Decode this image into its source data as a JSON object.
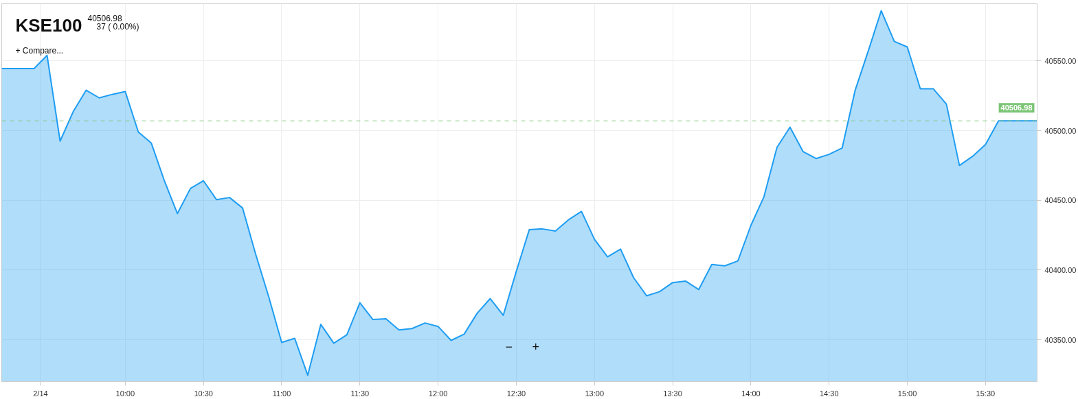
{
  "chart_data": {
    "type": "area",
    "title": "KSE100",
    "subtitle": "40506.98",
    "annotations": [
      "37 ( 0.00%)",
      "+ Compare...",
      "−",
      "+"
    ],
    "x": [
      9.21,
      9.4167,
      9.5,
      9.5833,
      9.6667,
      9.75,
      9.8333,
      9.9167,
      10,
      10.0833,
      10.1667,
      10.25,
      10.3333,
      10.4167,
      10.5,
      10.5833,
      10.6667,
      10.75,
      10.8333,
      10.9167,
      11,
      11.0833,
      11.1667,
      11.25,
      11.3333,
      11.4167,
      11.5,
      11.5833,
      11.6667,
      11.75,
      11.8333,
      11.9167,
      12,
      12.0833,
      12.1667,
      12.25,
      12.3333,
      12.4167,
      12.5,
      12.5833,
      12.6667,
      12.75,
      12.8333,
      12.9167,
      13,
      13.0833,
      13.1667,
      13.25,
      13.3333,
      13.4167,
      13.5,
      13.5833,
      13.6667,
      13.75,
      13.8333,
      13.9167,
      14,
      14.0833,
      14.1667,
      14.25,
      14.3333,
      14.4167,
      14.5,
      14.5833,
      14.6667,
      14.75,
      14.8333,
      14.9167,
      15,
      15.0833,
      15.1667,
      15.25,
      15.3333,
      15.4167,
      15.5,
      15.5833,
      15.83
    ],
    "series": [
      {
        "color": "#1e9df2",
        "values": [
          40544.5,
          40544.5,
          40554,
          40492.5,
          40513.5,
          40529,
          40523.5,
          40526,
          40528,
          40499,
          40491,
          40464,
          40440.5,
          40458.5,
          40464,
          40450.5,
          40452,
          40444.5,
          40411.5,
          40381,
          40348,
          40351,
          40324.5,
          40361,
          40347.5,
          40353.5,
          40376.5,
          40364.5,
          40365,
          40357,
          40358,
          40362,
          40359.5,
          40349.5,
          40354,
          40369,
          40379.5,
          40367.5,
          40399,
          40429,
          40429.5,
          40428,
          40436,
          40442,
          40422,
          40409.5,
          40415,
          40394.5,
          40381.5,
          40384.5,
          40391,
          40392,
          40386,
          40404,
          40403,
          40406.5,
          40432,
          40452.5,
          40488,
          40502.5,
          40485,
          40480,
          40483,
          40487.5,
          40529,
          40557,
          40586,
          40564,
          40560,
          40530,
          40530,
          40519,
          40475,
          40481.5,
          40490,
          40507,
          40507
        ]
      }
    ],
    "xlim": [
      9.21,
      15.83
    ],
    "xticks": [
      {
        "value": 9.458,
        "label": "2/14"
      },
      {
        "value": 10,
        "label": "10:00"
      },
      {
        "value": 10.5,
        "label": "10:30"
      },
      {
        "value": 11,
        "label": "11:00"
      },
      {
        "value": 11.5,
        "label": "11:30"
      },
      {
        "value": 12,
        "label": "12:00"
      },
      {
        "value": 12.5,
        "label": "12:30"
      },
      {
        "value": 13,
        "label": "13:00"
      },
      {
        "value": 13.5,
        "label": "13:30"
      },
      {
        "value": 14,
        "label": "14:00"
      },
      {
        "value": 14.5,
        "label": "14:30"
      },
      {
        "value": 15,
        "label": "15:00"
      },
      {
        "value": 15.5,
        "label": "15:30"
      }
    ],
    "ylim": [
      40320,
      40591
    ],
    "yticks": [
      {
        "value": 40350,
        "label": "40350.00"
      },
      {
        "value": 40400,
        "label": "40400.00"
      },
      {
        "value": 40450,
        "label": "40450.00"
      },
      {
        "value": 40500,
        "label": "40500.00"
      },
      {
        "value": 40550,
        "label": "40550.00"
      }
    ],
    "ref_lines": [
      {
        "axis": "y",
        "value": 40506.98,
        "label": "40506.98",
        "color": "#7cc576",
        "line_style": "dashed"
      }
    ],
    "grid": true,
    "marker": "none",
    "line_style": "solid"
  }
}
